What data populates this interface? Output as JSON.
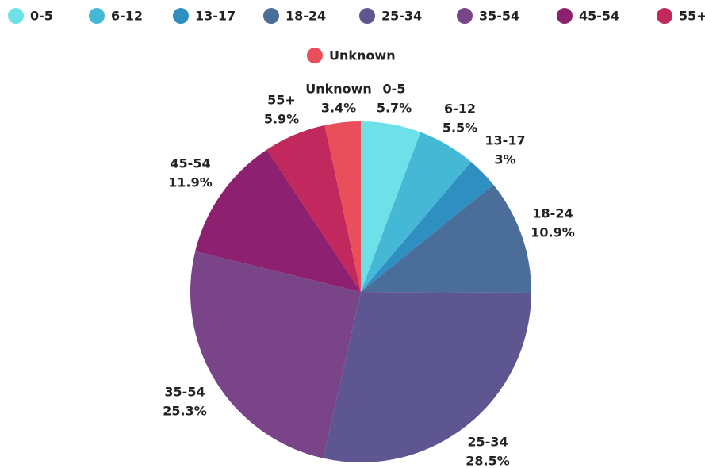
{
  "chart_data": {
    "type": "pie",
    "categories": [
      "0-5",
      "6-12",
      "13-17",
      "18-24",
      "25-34",
      "35-54",
      "45-54",
      "55+",
      "Unknown"
    ],
    "values": [
      5.7,
      5.5,
      3,
      10.9,
      28.5,
      25.3,
      11.9,
      5.9,
      3.4
    ],
    "value_labels": [
      "5.7%",
      "5.5%",
      "3%",
      "10.9%",
      "28.5%",
      "25.3%",
      "11.9%",
      "5.9%",
      "3.4%"
    ],
    "colors": [
      "#6ee0e8",
      "#45b8d6",
      "#2f8fc0",
      "#4a6d99",
      "#5e5690",
      "#7a4488",
      "#8e2070",
      "#c0285e",
      "#e84f5a"
    ],
    "legend": "top"
  }
}
